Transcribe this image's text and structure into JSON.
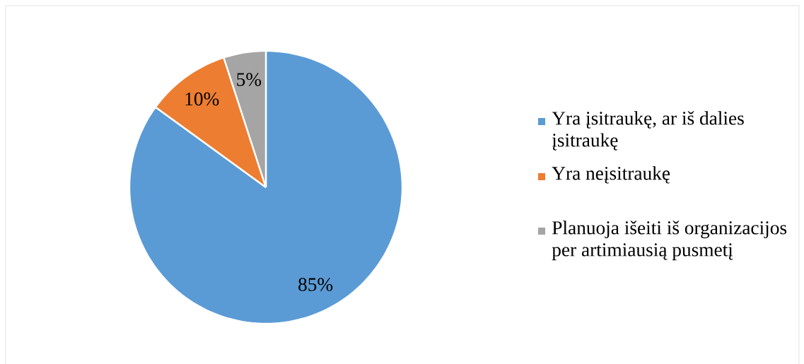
{
  "chart_data": {
    "type": "pie",
    "categories": [
      "Yra įsitraukę, ar iš dalies įsitraukę",
      "Yra neįsitraukę",
      "Planuoja išeiti iš organizacijos per artimiausią pusmetį"
    ],
    "values": [
      85,
      10,
      5
    ],
    "colors": [
      "#5b9bd5",
      "#ed7d31",
      "#a5a5a5"
    ],
    "value_labels": [
      "85%",
      "10%",
      "5%"
    ],
    "legend": "right"
  }
}
